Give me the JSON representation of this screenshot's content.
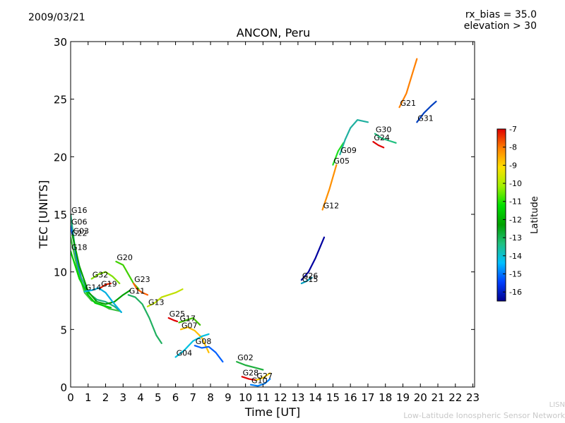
{
  "header": {
    "date": "2009/03/21",
    "rx_bias": "rx_bias = 35.0",
    "elevation": "elevation > 30"
  },
  "footer": {
    "line1": "LISN",
    "line2": "Low-Latitude Ionospheric Sensor Network"
  },
  "chart_data": {
    "type": "line",
    "title": "ANCON, Peru",
    "xlabel": "Time [UT]",
    "ylabel": "TEC [UNITS]",
    "xlim": [
      0,
      23.1
    ],
    "ylim": [
      0,
      30
    ],
    "xticks": [
      0,
      1,
      2,
      3,
      4,
      5,
      6,
      7,
      8,
      9,
      10,
      11,
      12,
      13,
      14,
      15,
      16,
      17,
      18,
      19,
      20,
      21,
      22,
      23
    ],
    "yticks": [
      0,
      5,
      10,
      15,
      20,
      25,
      30
    ],
    "colorbar": {
      "label": "Latitude",
      "ticks": [
        -7,
        -8,
        -9,
        -10,
        -11,
        -12,
        -13,
        -14,
        -15,
        -16
      ],
      "range": [
        -16.5,
        -7
      ],
      "colors": [
        "#00008f",
        "#0040ff",
        "#00c0ff",
        "#20c080",
        "#00a000",
        "#00e000",
        "#a0f000",
        "#ffe000",
        "#ff8000",
        "#e00000"
      ]
    },
    "series": [
      {
        "name": "G16",
        "color": "#20b080",
        "x": [
          0,
          0.3,
          0.6,
          1,
          1.5,
          2,
          2.5,
          2.9
        ],
        "y": [
          15,
          11.5,
          9.5,
          8.2,
          7.6,
          7.4,
          7.0,
          6.5
        ]
      },
      {
        "name": "G06",
        "color": "#0070ff",
        "x": [
          0,
          0.2,
          0.4,
          0.6
        ],
        "y": [
          14,
          12.5,
          10.5,
          9.3
        ]
      },
      {
        "name": "G03",
        "color": "#00a000",
        "x": [
          0.1,
          0.5,
          1,
          1.5,
          2,
          2.5,
          3,
          3.4
        ],
        "y": [
          13.2,
          10.5,
          8.3,
          7.4,
          7.2,
          7.4,
          8.0,
          8.4
        ]
      },
      {
        "name": "G22",
        "color": "#40c040",
        "x": [
          0,
          0.4,
          0.8,
          1.2,
          1.6,
          2.2,
          2.8
        ],
        "y": [
          13,
          10.2,
          8.2,
          7.5,
          7.3,
          6.8,
          6.6
        ]
      },
      {
        "name": "G18",
        "color": "#00d000",
        "x": [
          0,
          0.5,
          1,
          1.4,
          1.8,
          2.3
        ],
        "y": [
          11.8,
          9.4,
          8.0,
          7.3,
          7.1,
          6.9
        ]
      },
      {
        "name": "G20",
        "color": "#40d000",
        "x": [
          2.6,
          3.0,
          3.3,
          3.6,
          3.9
        ],
        "y": [
          10.9,
          10.6,
          9.8,
          9.0,
          8.5
        ]
      },
      {
        "name": "G32",
        "color": "#80e000",
        "x": [
          1.2,
          1.6,
          2.0,
          2.4,
          2.8
        ],
        "y": [
          9.4,
          9.8,
          10.0,
          9.6,
          9.0
        ]
      },
      {
        "name": "G19",
        "color": "#e02000",
        "x": [
          1.7,
          2.0,
          2.3
        ],
        "y": [
          8.6,
          8.9,
          9.0
        ]
      },
      {
        "name": "G14",
        "color": "#00b0e0",
        "x": [
          0.8,
          1.2,
          1.6,
          2.0,
          2.4,
          2.9
        ],
        "y": [
          8.3,
          8.4,
          8.6,
          8.2,
          7.4,
          6.5
        ]
      },
      {
        "name": "G23",
        "color": "#ff6000",
        "x": [
          3.6,
          3.8,
          4.1,
          4.4
        ],
        "y": [
          9.0,
          8.5,
          8.2,
          8.0
        ]
      },
      {
        "name": "G11",
        "color": "#20b060",
        "x": [
          3.3,
          3.7,
          4.1,
          4.5,
          4.9,
          5.2
        ],
        "y": [
          8.0,
          7.8,
          7.2,
          6.0,
          4.5,
          3.8
        ]
      },
      {
        "name": "G13",
        "color": "#c0e000",
        "x": [
          4.4,
          4.8,
          5.2,
          5.6,
          6.0,
          6.4
        ],
        "y": [
          7.0,
          7.3,
          7.8,
          8.0,
          8.2,
          8.5
        ]
      },
      {
        "name": "G25",
        "color": "#e00000",
        "x": [
          5.6,
          5.9,
          6.1
        ],
        "y": [
          6.0,
          5.8,
          5.7
        ]
      },
      {
        "name": "G17",
        "color": "#40c000",
        "x": [
          6.2,
          6.6,
          7.0,
          7.4
        ],
        "y": [
          5.6,
          5.8,
          6.0,
          5.4
        ]
      },
      {
        "name": "G07",
        "color": "#ffc000",
        "x": [
          6.3,
          6.7,
          7.1,
          7.5,
          7.9
        ],
        "y": [
          5.0,
          5.2,
          4.9,
          4.3,
          3.0
        ]
      },
      {
        "name": "G04",
        "color": "#00c0e0",
        "x": [
          6.0,
          6.5,
          7.0,
          7.5,
          7.9
        ],
        "y": [
          2.6,
          3.2,
          4.0,
          4.4,
          4.6
        ]
      },
      {
        "name": "G08",
        "color": "#0060ff",
        "x": [
          7.1,
          7.5,
          7.9,
          8.3,
          8.7
        ],
        "y": [
          3.6,
          3.4,
          3.5,
          3.0,
          2.2
        ]
      },
      {
        "name": "G02",
        "color": "#20b040",
        "x": [
          9.5,
          10.0,
          10.5,
          11.0
        ],
        "y": [
          2.2,
          1.9,
          1.7,
          1.5
        ]
      },
      {
        "name": "G28",
        "color": "#e00000",
        "x": [
          9.8,
          10.2,
          10.6
        ],
        "y": [
          0.9,
          0.7,
          0.6
        ]
      },
      {
        "name": "G27",
        "color": "#ffd000",
        "x": [
          10.6,
          11.0,
          11.4
        ],
        "y": [
          0.6,
          0.8,
          1.2
        ]
      },
      {
        "name": "G10",
        "color": "#0080ff",
        "x": [
          10.3,
          10.7,
          11.1,
          11.4
        ],
        "y": [
          0.2,
          0.1,
          0.3,
          0.7
        ]
      },
      {
        "name": "G26",
        "color": "#0000a0",
        "x": [
          13.2,
          13.6,
          14.0,
          14.5
        ],
        "y": [
          9.3,
          10.0,
          11.2,
          13.0
        ]
      },
      {
        "name": "G15",
        "color": "#00a0c0",
        "x": [
          13.2,
          13.5,
          13.8
        ],
        "y": [
          9.0,
          9.2,
          9.5
        ]
      },
      {
        "name": "G12",
        "color": "#ff9000",
        "x": [
          14.4,
          14.8,
          15.2
        ],
        "y": [
          15.4,
          17.2,
          19.3
        ]
      },
      {
        "name": "G05",
        "color": "#20e020",
        "x": [
          15.0,
          15.3,
          15.6
        ],
        "y": [
          19.3,
          20.5,
          21.2
        ]
      },
      {
        "name": "G09",
        "color": "#20b0a0",
        "x": [
          15.4,
          15.7,
          16.0,
          16.4,
          17.0
        ],
        "y": [
          20.2,
          21.5,
          22.5,
          23.2,
          23.0
        ]
      },
      {
        "name": "G30",
        "color": "#20c080",
        "x": [
          17.4,
          17.8,
          18.2,
          18.6
        ],
        "y": [
          22.0,
          21.6,
          21.4,
          21.2
        ]
      },
      {
        "name": "G24",
        "color": "#e00000",
        "x": [
          17.3,
          17.6,
          17.9
        ],
        "y": [
          21.3,
          21.0,
          20.8
        ]
      },
      {
        "name": "G21",
        "color": "#ff8000",
        "x": [
          18.8,
          19.2,
          19.6,
          19.8
        ],
        "y": [
          24.3,
          25.5,
          27.5,
          28.5
        ]
      },
      {
        "name": "G31",
        "color": "#0040c0",
        "x": [
          19.8,
          20.2,
          20.6,
          20.9
        ],
        "y": [
          23.0,
          23.8,
          24.4,
          24.8
        ]
      }
    ]
  }
}
